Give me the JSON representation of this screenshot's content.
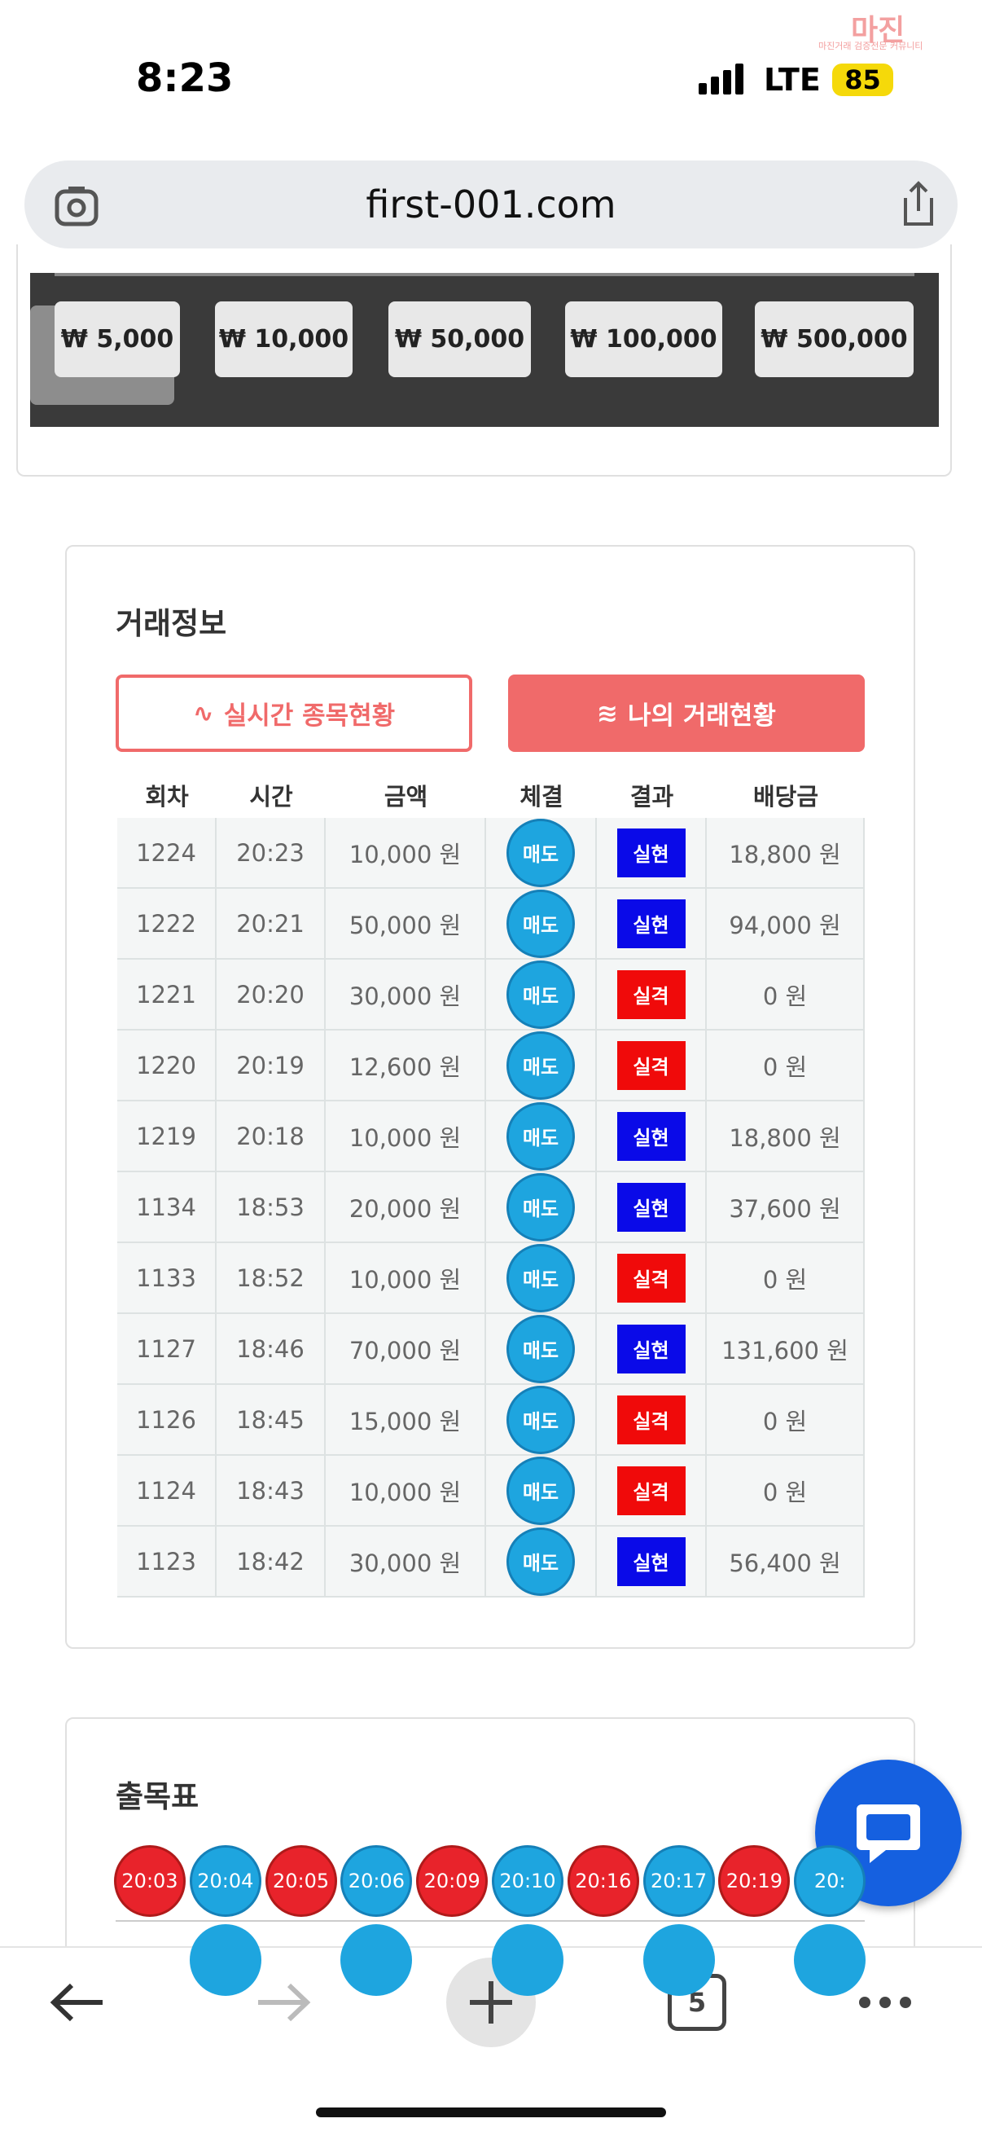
{
  "status": {
    "time": "8:23",
    "network": "LTE",
    "battery": "85"
  },
  "watermark": {
    "title": "마진",
    "subtitle": "마진거래 검증전문 커뮤니티"
  },
  "browser": {
    "url": "first-001.com",
    "tabs": "5"
  },
  "amounts": [
    "₩ 5,000",
    "₩ 10,000",
    "₩ 50,000",
    "₩ 100,000",
    "₩ 500,000"
  ],
  "trade": {
    "title": "거래정보",
    "tabs": [
      "실시간 종목현황",
      "나의 거래현황"
    ],
    "headers": [
      "회차",
      "시간",
      "금액",
      "체결",
      "결과",
      "배당금"
    ],
    "rows": [
      [
        "1224",
        "20:23",
        "10,000 원",
        "매도",
        "실현",
        "18,800 원"
      ],
      [
        "1222",
        "20:21",
        "50,000 원",
        "매도",
        "실현",
        "94,000 원"
      ],
      [
        "1221",
        "20:20",
        "30,000 원",
        "매도",
        "실격",
        "0 원"
      ],
      [
        "1220",
        "20:19",
        "12,600 원",
        "매도",
        "실격",
        "0 원"
      ],
      [
        "1219",
        "20:18",
        "10,000 원",
        "매도",
        "실현",
        "18,800 원"
      ],
      [
        "1134",
        "18:53",
        "20,000 원",
        "매도",
        "실현",
        "37,600 원"
      ],
      [
        "1133",
        "18:52",
        "10,000 원",
        "매도",
        "실격",
        "0 원"
      ],
      [
        "1127",
        "18:46",
        "70,000 원",
        "매도",
        "실현",
        "131,600 원"
      ],
      [
        "1126",
        "18:45",
        "15,000 원",
        "매도",
        "실격",
        "0 원"
      ],
      [
        "1124",
        "18:43",
        "10,000 원",
        "매도",
        "실격",
        "0 원"
      ],
      [
        "1123",
        "18:42",
        "30,000 원",
        "매도",
        "실현",
        "56,400 원"
      ]
    ]
  },
  "chart": {
    "title": "출목표",
    "items": [
      {
        "label": "20:03",
        "color": "#e8232b"
      },
      {
        "label": "20:04",
        "color": "#1ea5df"
      },
      {
        "label": "20:05",
        "color": "#e8232b"
      },
      {
        "label": "20:06",
        "color": "#1ea5df"
      },
      {
        "label": "20:09",
        "color": "#e8232b"
      },
      {
        "label": "20:10",
        "color": "#1ea5df"
      },
      {
        "label": "20:16",
        "color": "#e8232b"
      },
      {
        "label": "20:17",
        "color": "#1ea5df"
      },
      {
        "label": "20:19",
        "color": "#e8232b"
      },
      {
        "label": "20:",
        "color": "#1ea5df"
      }
    ]
  }
}
